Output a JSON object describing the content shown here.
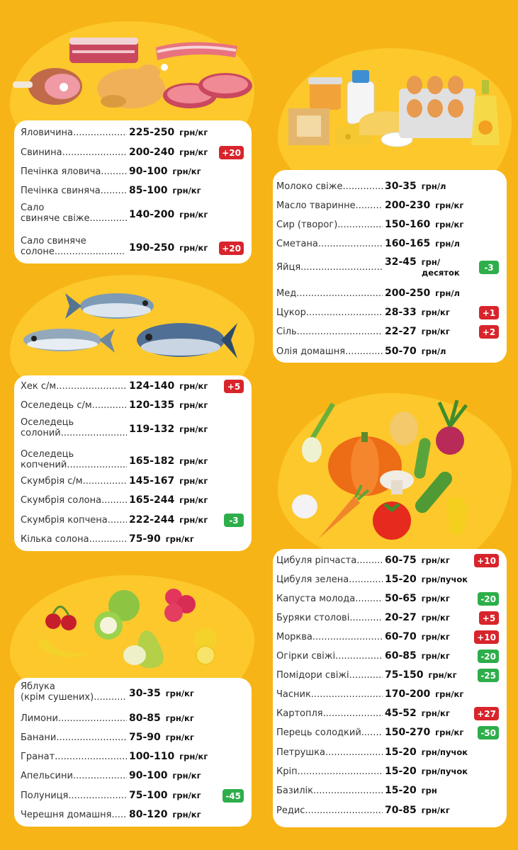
{
  "colors": {
    "background": "#f7b416",
    "blob": "#fcc82c",
    "up": "#d8242b",
    "down": "#2eae4a"
  },
  "meat": [
    {
      "name": "Яловичина",
      "price": "225-250",
      "unit": "грн/кг"
    },
    {
      "name": "Свинина",
      "price": "200-240",
      "unit": "грн/кг",
      "badge": "+20",
      "dir": "up"
    },
    {
      "name": "Печінка яловича",
      "price": "90-100",
      "unit": "грн/кг"
    },
    {
      "name": "Печінка свиняча",
      "price": "85-100",
      "unit": "грн/кг"
    },
    {
      "name": "Сало",
      "name2": "свиняче свіже",
      "price": "140-200",
      "unit": "грн/кг"
    },
    {
      "name": "Сало свиняче",
      "name2": "солоне",
      "price": "190-250",
      "unit": "грн/кг",
      "badge": "+20",
      "dir": "up"
    }
  ],
  "fish": [
    {
      "name": "Хек с/м",
      "price": "124-140",
      "unit": "грн/кг",
      "badge": "+5",
      "dir": "up"
    },
    {
      "name": "Оселедець с/м",
      "price": "120-135",
      "unit": "грн/кг"
    },
    {
      "name": "Оселедець",
      "name2": "солоний",
      "price": "119-132",
      "unit": "грн/кг"
    },
    {
      "name": "Оселедець",
      "name2": "копчений",
      "price": "165-182",
      "unit": "грн/кг"
    },
    {
      "name": "Скумбрія с/м",
      "price": "145-167",
      "unit": "грн/кг"
    },
    {
      "name": "Скумбрія солона",
      "price": "165-244",
      "unit": "грн/кг"
    },
    {
      "name": "Скумбрія копчена",
      "price": "222-244",
      "unit": "грн/кг",
      "badge": "-3",
      "dir": "down"
    },
    {
      "name": "Кілька солона",
      "price": "75-90",
      "unit": "грн/кг"
    }
  ],
  "fruit": [
    {
      "name": "Яблука",
      "name2": "(крім сушених)",
      "price": "30-35",
      "unit": "грн/кг"
    },
    {
      "name": "Лимони",
      "price": "80-85",
      "unit": "грн/кг"
    },
    {
      "name": "Банани",
      "price": "75-90",
      "unit": "грн/кг"
    },
    {
      "name": "Гранат",
      "price": "100-110",
      "unit": "грн/кг"
    },
    {
      "name": "Апельсини",
      "price": "90-100",
      "unit": "грн/кг"
    },
    {
      "name": "Полуниця",
      "price": "75-100",
      "unit": "грн/кг",
      "badge": "-45",
      "dir": "down"
    },
    {
      "name": "Черешня домашня",
      "price": "80-120",
      "unit": "грн/кг"
    }
  ],
  "dairy": [
    {
      "name": "Молоко свіже",
      "price": "30-35",
      "unit": "грн/л"
    },
    {
      "name": "Масло тваринне",
      "price": "200-230",
      "unit": "грн/кг"
    },
    {
      "name": "Сир (творог)",
      "price": "150-160",
      "unit": "грн/кг"
    },
    {
      "name": "Сметана",
      "price": "160-165",
      "unit": "грн/л"
    },
    {
      "name": "Яйця",
      "price": "32-45",
      "unit": "грн/",
      "unit2": "десяток",
      "badge": "-3",
      "dir": "down"
    },
    {
      "name": "Мед",
      "price": "200-250",
      "unit": "грн/л"
    },
    {
      "name": "Цукор",
      "price": "28-33",
      "unit": "грн/кг",
      "badge": "+1",
      "dir": "up"
    },
    {
      "name": "Сіль",
      "price": "22-27",
      "unit": "грн/кг",
      "badge": "+2",
      "dir": "up"
    },
    {
      "name": "Олія домашня",
      "price": "50-70",
      "unit": "грн/л"
    }
  ],
  "vegetables": [
    {
      "name": "Цибуля ріпчаста",
      "price": "60-75",
      "unit": "грн/кг",
      "badge": "+10",
      "dir": "up"
    },
    {
      "name": "Цибуля зелена",
      "price": "15-20",
      "unit": "грн/пучок"
    },
    {
      "name": "Капуста молода",
      "price": "50-65",
      "unit": "грн/кг",
      "badge": "-20",
      "dir": "down"
    },
    {
      "name": "Буряки столові",
      "price": "20-27",
      "unit": "грн/кг",
      "badge": "+5",
      "dir": "up"
    },
    {
      "name": "Морква",
      "price": "60-70",
      "unit": "грн/кг",
      "badge": "+10",
      "dir": "up"
    },
    {
      "name": "Огірки свіжі",
      "price": "60-85",
      "unit": "грн/кг",
      "badge": "-20",
      "dir": "down"
    },
    {
      "name": "Помідори свіжі",
      "price": "75-150",
      "unit": "грн/кг",
      "badge": "-25",
      "dir": "down"
    },
    {
      "name": "Часник",
      "price": "170-200",
      "unit": "грн/кг"
    },
    {
      "name": "Картопля",
      "price": "45-52",
      "unit": "грн/кг",
      "badge": "+27",
      "dir": "up"
    },
    {
      "name": "Перець солодкий",
      "price": "150-270",
      "unit": "грн/кг",
      "badge": "-50",
      "dir": "down"
    },
    {
      "name": "Петрушка",
      "price": "15-20",
      "unit": "грн/пучок"
    },
    {
      "name": "Кріп",
      "price": "15-20",
      "unit": "грн/пучок"
    },
    {
      "name": "Базилік",
      "price": "15-20",
      "unit": "грн"
    },
    {
      "name": "Редис",
      "price": "70-85",
      "unit": "грн/кг"
    }
  ]
}
